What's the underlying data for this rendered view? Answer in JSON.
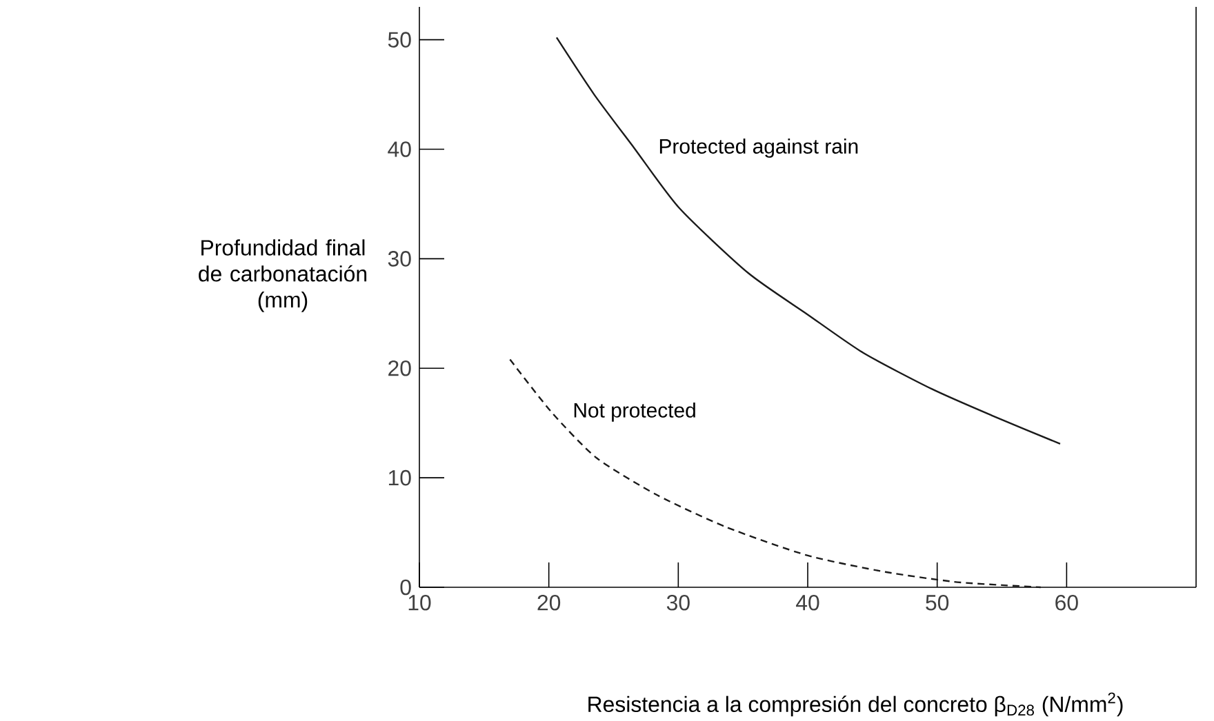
{
  "chart_data": {
    "type": "line",
    "xlabel": "Resistencia a la compresión del concreto β$_{D28}$ (N/mm$^{2}$)",
    "ylabel": "Profundidad final de carbonatación (mm)",
    "xlim": [
      10,
      70
    ],
    "ylim": [
      0,
      53
    ],
    "xticks": [
      10,
      20,
      30,
      40,
      50,
      60
    ],
    "yticks": [
      0,
      10,
      20,
      30,
      40,
      50
    ],
    "grid": false,
    "legend": false,
    "marker": "none",
    "series": [
      {
        "name": "Protected against rain",
        "color": "#1a1a1a",
        "line_style": "solid",
        "x": [
          20.6,
          23.5,
          26.6,
          30.1,
          35.4,
          40.0,
          44.3,
          49.6,
          54.2,
          59.5
        ],
        "values": [
          50.2,
          45.0,
          40.1,
          34.6,
          28.7,
          24.9,
          21.4,
          18.1,
          15.7,
          13.1
        ]
      },
      {
        "name": "Not protected",
        "color": "#1a1a1a",
        "line_style": "dashed",
        "x": [
          17.0,
          20.2,
          23.7,
          28.4,
          33.7,
          40.0,
          46.0,
          51.3,
          55.0,
          58.0
        ],
        "values": [
          20.8,
          16.0,
          11.8,
          8.4,
          5.5,
          2.9,
          1.4,
          0.5,
          0.2,
          0.0
        ]
      }
    ]
  }
}
